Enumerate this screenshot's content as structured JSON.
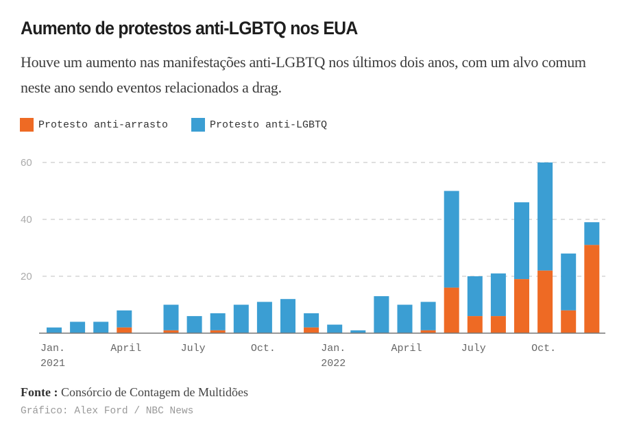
{
  "header": {
    "title": "Aumento de protestos anti-LGBTQ nos EUA",
    "subtitle": "Houve um aumento nas manifestações anti-LGBTQ nos últimos dois anos, com um alvo comum neste ano sendo eventos relacionados a drag."
  },
  "legend": [
    {
      "label": "Protesto anti-arrasto",
      "color": "#EE6A24"
    },
    {
      "label": "Protesto anti-LGBTQ",
      "color": "#3B9ED3"
    }
  ],
  "footer": {
    "source_label": "Fonte :",
    "source_text": "Consórcio de Contagem de Multidões",
    "credit": "Gráfico: Alex Ford / NBC News"
  },
  "chart_data": {
    "type": "bar",
    "stacked": true,
    "title": "Aumento de protestos anti-LGBTQ nos EUA",
    "xlabel": "",
    "ylabel": "",
    "ylim": [
      0,
      60
    ],
    "yticks": [
      20,
      40,
      60
    ],
    "grid": true,
    "legend_position": "top-left",
    "categories": [
      "Jan. 2021",
      "Feb. 2021",
      "Mar. 2021",
      "Apr. 2021",
      "May 2021",
      "Jun. 2021",
      "Jul. 2021",
      "Aug. 2021",
      "Sep. 2021",
      "Oct. 2021",
      "Nov. 2021",
      "Dec. 2021",
      "Jan. 2022",
      "Feb. 2022",
      "Mar. 2022",
      "Apr. 2022",
      "May 2022",
      "Jun. 2022",
      "Jul. 2022",
      "Aug. 2022",
      "Sep. 2022",
      "Oct. 2022",
      "Nov. 2022",
      "Dec. 2022"
    ],
    "x_tick_labels": [
      {
        "index": 0,
        "line1": "Jan.",
        "line2": "2021"
      },
      {
        "index": 3,
        "line1": "April",
        "line2": ""
      },
      {
        "index": 6,
        "line1": "July",
        "line2": ""
      },
      {
        "index": 9,
        "line1": "Oct.",
        "line2": ""
      },
      {
        "index": 12,
        "line1": "Jan.",
        "line2": "2022"
      },
      {
        "index": 15,
        "line1": "April",
        "line2": ""
      },
      {
        "index": 18,
        "line1": "July",
        "line2": ""
      },
      {
        "index": 21,
        "line1": "Oct.",
        "line2": ""
      }
    ],
    "series": [
      {
        "name": "Protesto anti-arrasto",
        "color": "#EE6A24",
        "values": [
          0,
          0,
          0,
          2,
          0,
          1,
          0,
          1,
          0,
          0,
          0,
          2,
          0,
          0,
          0,
          0,
          1,
          16,
          6,
          6,
          19,
          22,
          8,
          31
        ]
      },
      {
        "name": "Protesto anti-LGBTQ",
        "color": "#3B9ED3",
        "values": [
          2,
          4,
          4,
          6,
          0,
          9,
          6,
          6,
          10,
          11,
          12,
          5,
          3,
          1,
          13,
          10,
          10,
          34,
          14,
          15,
          27,
          38,
          20,
          8
        ]
      }
    ],
    "totals": [
      2,
      4,
      4,
      8,
      0,
      10,
      6,
      7,
      10,
      11,
      12,
      7,
      3,
      1,
      13,
      10,
      11,
      50,
      20,
      21,
      46,
      60,
      28,
      39
    ]
  }
}
